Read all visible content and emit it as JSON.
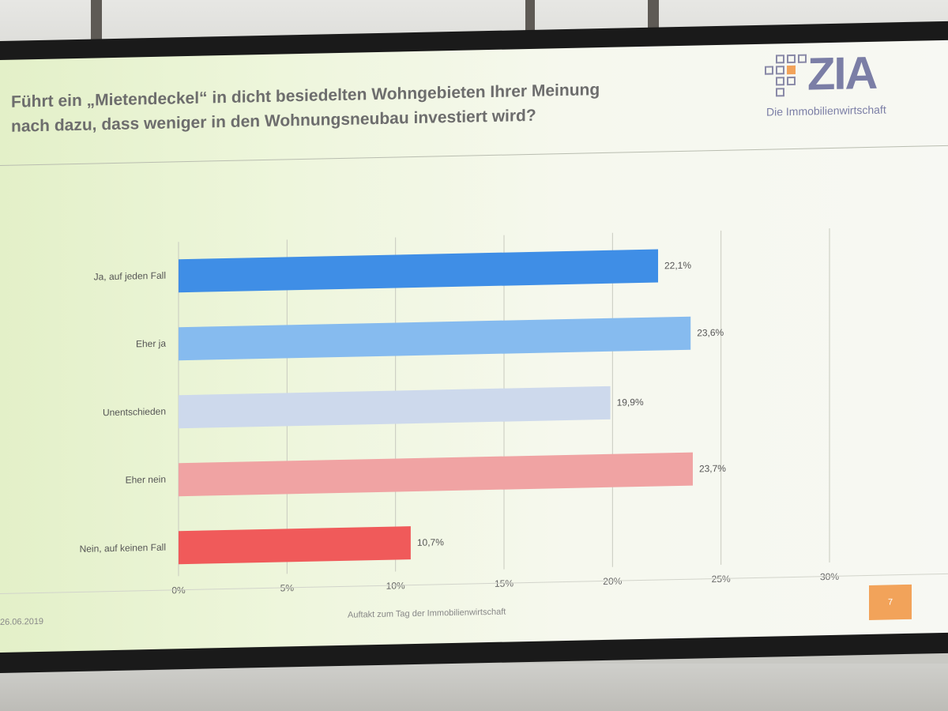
{
  "slide": {
    "title_line1": "Führt ein „Mietendeckel“ in dicht besiedelten Wohngebieten Ihrer Meinung",
    "title_line2": "nach dazu, dass weniger in den Wohnungsneubau investiert wird?",
    "logo_text": "ZIA",
    "logo_subtitle": "Die Immobilienwirtschaft",
    "footer_date": "26.06.2019",
    "footer_center": "Auftakt zum Tag der Immobilienwirtschaft",
    "page_number": "7",
    "accent_color": "#f2a35a",
    "logo_color": "#7b7ea6"
  },
  "chart_data": {
    "type": "bar",
    "orientation": "horizontal",
    "title": "",
    "xlabel": "",
    "ylabel": "",
    "xlim": [
      0,
      30
    ],
    "grid": true,
    "categories": [
      "Ja, auf jeden Fall",
      "Eher ja",
      "Unentschieden",
      "Eher nein",
      "Nein, auf keinen Fall"
    ],
    "values": [
      22.1,
      23.6,
      19.9,
      23.7,
      10.7
    ],
    "value_labels": [
      "22,1%",
      "23,6%",
      "19,9%",
      "23,7%",
      "10,7%"
    ],
    "colors": [
      "#3f8ee6",
      "#86bbef",
      "#cdd9ec",
      "#f0a3a3",
      "#f05a5a"
    ],
    "ticks": [
      0,
      5,
      10,
      15,
      20,
      25,
      30
    ],
    "tick_labels": [
      "0%",
      "5%",
      "10%",
      "15%",
      "20%",
      "25%",
      "30%"
    ]
  }
}
